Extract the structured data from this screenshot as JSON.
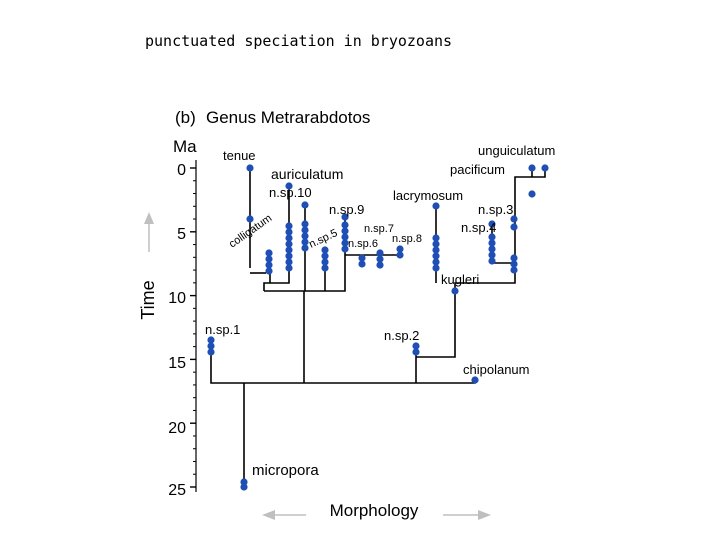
{
  "slide": {
    "title": "punctuated speciation in bryozoans"
  },
  "figure": {
    "panel_label": "(b)",
    "genus_title": "Genus Metrarabdotos",
    "y_unit": "Ma",
    "y_ticks": [
      "0",
      "5",
      "10",
      "15",
      "20",
      "25"
    ],
    "y_axis_label": "Time",
    "x_axis_label": "Morphology",
    "colors": {
      "line": "#000000",
      "dot": "#1f4fb4",
      "arrow": "#bfbfbf"
    },
    "species": {
      "tenue": "tenue",
      "auriculatum": "auriculatum",
      "nsp10": "n.sp.10",
      "nsp9": "n.sp.9",
      "colligatum": "colligatum",
      "nsp5": "n.sp.5",
      "nsp7": "n.sp.7",
      "nsp6": "n.sp.6",
      "nsp8": "n.sp.8",
      "lacrymosum": "lacrymosum",
      "unguiculatum": "unguiculatum",
      "pacificum": "pacificum",
      "nsp3": "n.sp.3",
      "nsp4": "n.sp.4",
      "kugleri": "kugleri",
      "nsp1": "n.sp.1",
      "nsp2": "n.sp.2",
      "chipolanum": "chipolanum",
      "micropora": "micropora"
    }
  }
}
